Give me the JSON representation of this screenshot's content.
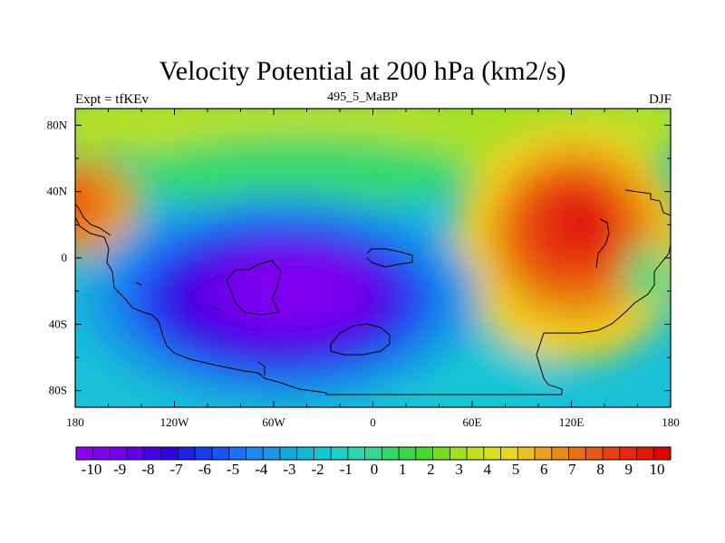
{
  "title": "Velocity Potential at 200 hPa (km2/s)",
  "subtitle_left": "Expt = tfKEv",
  "subtitle_center": "495_5_MaBP",
  "subtitle_right": "DJF",
  "x_ticks": [
    "180",
    "120W",
    "60W",
    "0",
    "60E",
    "120E",
    "180"
  ],
  "y_ticks": [
    "80N",
    "40N",
    "0",
    "40S",
    "80S"
  ],
  "colorbar": {
    "labels": [
      "-10",
      "-9",
      "-8",
      "-7",
      "-6",
      "-5",
      "-4",
      "-3",
      "-2",
      "-1",
      "0",
      "1",
      "2",
      "3",
      "4",
      "5",
      "6",
      "7",
      "8",
      "9",
      "10"
    ],
    "colors": [
      "#8c00f0",
      "#7f00f0",
      "#7200ee",
      "#6000ea",
      "#4a00e6",
      "#3300e0",
      "#2020e0",
      "#1a3cf0",
      "#1a55f5",
      "#1a70ff",
      "#1a88f5",
      "#1898e6",
      "#10a8dd",
      "#10b8d8",
      "#12c6d4",
      "#20d0c8",
      "#2bd6b4",
      "#30d890",
      "#35d868",
      "#38d84a",
      "#45dd2a",
      "#78dd20",
      "#a0e020",
      "#c0e020",
      "#d8e020",
      "#e8d820",
      "#f0c020",
      "#f0a020",
      "#eb8a10",
      "#e87010",
      "#e85a10",
      "#e84010",
      "#e82810",
      "#e01808",
      "#e00000"
    ]
  },
  "chart_data": {
    "type": "heatmap",
    "title": "Velocity Potential at 200 hPa (km2/s)",
    "xlabel": "",
    "ylabel": "",
    "xlim": [
      -180,
      180
    ],
    "ylim": [
      -90,
      90
    ],
    "x_ticks": [
      -180,
      -120,
      -60,
      0,
      60,
      120,
      180
    ],
    "y_ticks": [
      80,
      40,
      0,
      -40,
      -80
    ],
    "value_range": [
      -10,
      10
    ],
    "features": [
      {
        "type": "min",
        "lon": -55,
        "lat": -25,
        "value": -10
      },
      {
        "type": "max",
        "lon": 120,
        "lat": 25,
        "value": 9.5
      },
      {
        "type": "max",
        "lon": -178,
        "lat": 30,
        "value": 7
      }
    ]
  }
}
